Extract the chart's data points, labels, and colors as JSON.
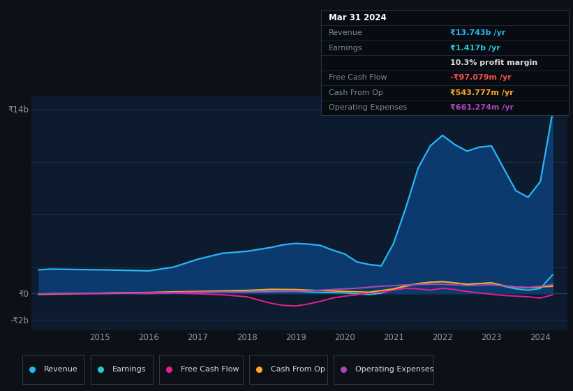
{
  "bg_color": "#0d1117",
  "plot_bg_color": "#0d1b2e",
  "grid_color": "#243550",
  "title_box_bg": "#080c10",
  "ytick_labels": [
    "₹14b",
    "₹0",
    "-₹2b"
  ],
  "ytick_values": [
    14000000000,
    0,
    -2000000000
  ],
  "xtick_labels": [
    "2015",
    "2016",
    "2017",
    "2018",
    "2019",
    "2020",
    "2021",
    "2022",
    "2023",
    "2024"
  ],
  "ylim": [
    -2800000000,
    15000000000
  ],
  "xlim": [
    2013.6,
    2024.55
  ],
  "legend": [
    {
      "label": "Revenue",
      "color": "#29b6f6"
    },
    {
      "label": "Earnings",
      "color": "#26c6da"
    },
    {
      "label": "Free Cash Flow",
      "color": "#e91e8c"
    },
    {
      "label": "Cash From Op",
      "color": "#ffa726"
    },
    {
      "label": "Operating Expenses",
      "color": "#ab47bc"
    }
  ],
  "revenue_color": "#29b6f6",
  "revenue_fill": "#0d3a6e",
  "revenue_x": [
    2013.75,
    2014.0,
    2014.5,
    2015.0,
    2015.5,
    2016.0,
    2016.5,
    2017.0,
    2017.5,
    2018.0,
    2018.25,
    2018.5,
    2018.75,
    2019.0,
    2019.25,
    2019.5,
    2019.75,
    2020.0,
    2020.25,
    2020.5,
    2020.75,
    2021.0,
    2021.25,
    2021.5,
    2021.75,
    2022.0,
    2022.25,
    2022.5,
    2022.75,
    2023.0,
    2023.25,
    2023.5,
    2023.75,
    2024.0,
    2024.25
  ],
  "revenue_y": [
    1800000000,
    1850000000,
    1820000000,
    1800000000,
    1760000000,
    1720000000,
    2000000000,
    2600000000,
    3050000000,
    3200000000,
    3350000000,
    3500000000,
    3700000000,
    3800000000,
    3750000000,
    3650000000,
    3300000000,
    3000000000,
    2400000000,
    2200000000,
    2100000000,
    3800000000,
    6500000000,
    9500000000,
    11200000000,
    12000000000,
    11300000000,
    10800000000,
    11100000000,
    11200000000,
    9500000000,
    7800000000,
    7300000000,
    8500000000,
    13743000000
  ],
  "earnings_color": "#26c6da",
  "earnings_x": [
    2013.75,
    2014.0,
    2014.5,
    2015.0,
    2015.5,
    2016.0,
    2016.5,
    2017.0,
    2017.5,
    2018.0,
    2018.5,
    2019.0,
    2019.5,
    2020.0,
    2020.25,
    2020.5,
    2020.75,
    2021.0,
    2021.25,
    2021.5,
    2021.75,
    2022.0,
    2022.25,
    2022.5,
    2022.75,
    2023.0,
    2023.25,
    2023.5,
    2023.75,
    2024.0,
    2024.25
  ],
  "earnings_y": [
    -50000000,
    -20000000,
    0,
    20000000,
    30000000,
    10000000,
    60000000,
    100000000,
    120000000,
    140000000,
    180000000,
    160000000,
    80000000,
    50000000,
    -30000000,
    -80000000,
    20000000,
    350000000,
    600000000,
    750000000,
    850000000,
    900000000,
    800000000,
    700000000,
    750000000,
    820000000,
    550000000,
    350000000,
    250000000,
    380000000,
    1417000000
  ],
  "fcf_color": "#e91e8c",
  "fcf_x": [
    2013.75,
    2014.0,
    2014.5,
    2015.0,
    2015.5,
    2016.0,
    2016.5,
    2017.0,
    2017.5,
    2018.0,
    2018.25,
    2018.5,
    2018.75,
    2019.0,
    2019.25,
    2019.5,
    2019.75,
    2020.0,
    2020.25,
    2020.5,
    2020.75,
    2021.0,
    2021.25,
    2021.5,
    2021.75,
    2022.0,
    2022.25,
    2022.5,
    2022.75,
    2023.0,
    2023.25,
    2023.5,
    2023.75,
    2024.0,
    2024.25
  ],
  "fcf_y": [
    -80000000,
    -60000000,
    -30000000,
    -20000000,
    10000000,
    -10000000,
    40000000,
    -20000000,
    -100000000,
    -250000000,
    -500000000,
    -750000000,
    -900000000,
    -950000000,
    -800000000,
    -600000000,
    -350000000,
    -200000000,
    -100000000,
    50000000,
    100000000,
    250000000,
    400000000,
    350000000,
    250000000,
    400000000,
    300000000,
    150000000,
    50000000,
    -50000000,
    -150000000,
    -200000000,
    -250000000,
    -350000000,
    -97079000
  ],
  "cashop_color": "#ffa726",
  "cashop_x": [
    2013.75,
    2014.0,
    2014.5,
    2015.0,
    2015.5,
    2016.0,
    2016.5,
    2017.0,
    2017.5,
    2018.0,
    2018.5,
    2019.0,
    2019.5,
    2020.0,
    2020.5,
    2021.0,
    2021.25,
    2021.5,
    2021.75,
    2022.0,
    2022.25,
    2022.5,
    2022.75,
    2023.0,
    2023.25,
    2023.5,
    2023.75,
    2024.0,
    2024.25
  ],
  "cashop_y": [
    -60000000,
    -40000000,
    0,
    30000000,
    60000000,
    80000000,
    130000000,
    160000000,
    200000000,
    240000000,
    320000000,
    300000000,
    220000000,
    160000000,
    100000000,
    350000000,
    550000000,
    750000000,
    850000000,
    900000000,
    800000000,
    700000000,
    750000000,
    800000000,
    600000000,
    480000000,
    430000000,
    500000000,
    543777000
  ],
  "opex_color": "#ab47bc",
  "opex_x": [
    2013.75,
    2014.0,
    2014.5,
    2015.0,
    2015.5,
    2016.0,
    2016.5,
    2017.0,
    2017.5,
    2018.0,
    2018.5,
    2019.0,
    2019.25,
    2019.5,
    2019.75,
    2020.0,
    2020.25,
    2020.5,
    2020.75,
    2021.0,
    2021.25,
    2021.5,
    2021.75,
    2022.0,
    2022.25,
    2022.5,
    2022.75,
    2023.0,
    2023.25,
    2023.5,
    2023.75,
    2024.0,
    2024.25
  ],
  "opex_y": [
    -30000000,
    -10000000,
    10000000,
    20000000,
    40000000,
    60000000,
    80000000,
    100000000,
    110000000,
    100000000,
    120000000,
    160000000,
    200000000,
    250000000,
    300000000,
    350000000,
    400000000,
    480000000,
    550000000,
    600000000,
    650000000,
    680000000,
    700000000,
    700000000,
    650000000,
    600000000,
    630000000,
    660000000,
    580000000,
    500000000,
    460000000,
    550000000,
    661274000
  ]
}
